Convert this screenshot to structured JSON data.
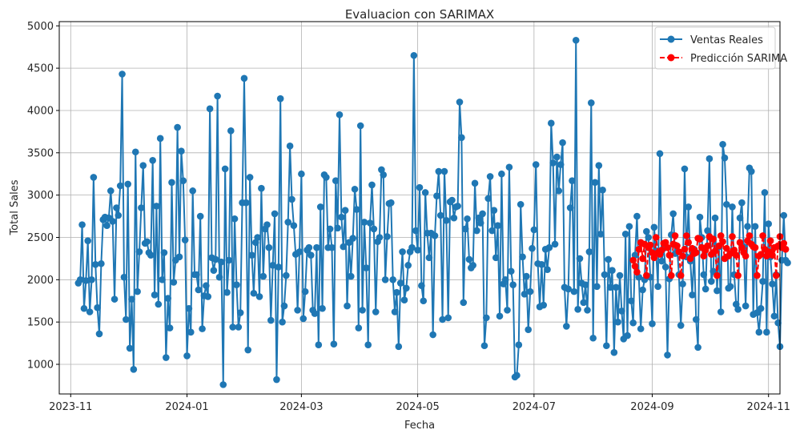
{
  "chart_data": {
    "type": "line",
    "title": "Evaluacion con SARIMAX",
    "xlabel": "Fecha",
    "ylabel": "Total Sales",
    "xlim": [
      "2023-10-26",
      "2024-11-07"
    ],
    "ylim": [
      650,
      5050
    ],
    "x_ticks": [
      "2023-11",
      "2024-01",
      "2024-03",
      "2024-05",
      "2024-07",
      "2024-09",
      "2024-11"
    ],
    "x_tick_dates": [
      "2023-11-01",
      "2024-01-01",
      "2024-03-01",
      "2024-05-01",
      "2024-07-01",
      "2024-09-01",
      "2024-11-01"
    ],
    "y_ticks": [
      1000,
      1500,
      2000,
      2500,
      3000,
      3500,
      4000,
      4500,
      5000
    ],
    "grid": true,
    "legend": {
      "placement": "top-right"
    },
    "series": [
      {
        "name": "Ventas Reales",
        "color": "#1f77b4",
        "line_style": "solid",
        "marker": "circle",
        "start_date": "2023-11-05",
        "values": [
          1960,
          2000,
          2650,
          1660,
          1990,
          2460,
          1620,
          2000,
          3210,
          2180,
          1670,
          1360,
          2190,
          2710,
          2740,
          2640,
          2730,
          3050,
          2690,
          1770,
          2850,
          2760,
          3110,
          4430,
          2030,
          1530,
          3130,
          1190,
          1770,
          940,
          3510,
          1860,
          2330,
          2850,
          3350,
          2430,
          2450,
          2320,
          2290,
          3410,
          1820,
          2870,
          1710,
          3670,
          2000,
          2320,
          1080,
          1780,
          1430,
          3150,
          1970,
          2230,
          3800,
          2270,
          3520,
          3170,
          2470,
          1100,
          1660,
          1380,
          3050,
          2060,
          2060,
          1880,
          2750,
          1420,
          1810,
          1930,
          1800,
          4020,
          2260,
          2110,
          2240,
          4170,
          2030,
          2210,
          760,
          3310,
          1850,
          2230,
          3760,
          1440,
          2720,
          1940,
          1440,
          1610,
          2910,
          4380,
          2910,
          1170,
          3210,
          2290,
          1840,
          2440,
          2500,
          1800,
          3080,
          2040,
          2600,
          2650,
          2380,
          1520,
          2170,
          2780,
          820,
          2150,
          4140,
          1500,
          1690,
          2050,
          2680,
          3580,
          2950,
          2640,
          2300,
          1640,
          2330,
          3250,
          1540,
          1860,
          2350,
          2380,
          2290,
          1640,
          1600,
          2380,
          1230,
          2860,
          1660,
          3240,
          3210,
          2380,
          2600,
          2380,
          1240,
          3170,
          2610,
          3950,
          2740,
          2390,
          2820,
          1690,
          2440,
          2040,
          2490,
          3070,
          2830,
          1430,
          3820,
          1640,
          2680,
          2140,
          1230,
          2670,
          3120,
          2600,
          1620,
          2450,
          2500,
          3300,
          3240,
          2000,
          2510,
          2900,
          2910,
          2000,
          1620,
          1850,
          1210,
          1960,
          2330,
          1760,
          1900,
          2170,
          2330,
          2380,
          4650,
          2580,
          2350,
          3090,
          1930,
          1750,
          3030,
          2550,
          2260,
          2550,
          1350,
          2520,
          2990,
          3280,
          2760,
          1530,
          3280,
          2700,
          1550,
          2920,
          2940,
          2730,
          2860,
          2870,
          4100,
          3680,
          1730,
          2600,
          2720,
          2240,
          2140,
          2170,
          3140,
          2580,
          2730,
          2670,
          2780,
          1220,
          1550,
          2960,
          3220,
          2580,
          2820,
          2260,
          2640,
          1570,
          3250,
          1950,
          2000,
          1640,
          3330,
          2100,
          1940,
          850,
          870,
          1230,
          2890,
          2270,
          1830,
          2040,
          1410,
          1860,
          2370,
          2590,
          3360,
          2190,
          1680,
          2180,
          1700,
          2360,
          2120,
          2380,
          3850,
          3380,
          2420,
          3450,
          3050,
          3360,
          3620,
          1910,
          1450,
          1890,
          2850,
          3170,
          1860,
          4830,
          1650,
          2250,
          1960,
          1730,
          1940,
          1640,
          2330,
          4090,
          1310,
          3150,
          1920,
          3350,
          2540,
          3060,
          2060,
          1220,
          2240,
          1910,
          2110,
          1140,
          1910,
          1500,
          2050,
          1630,
          1300,
          2540,
          1340,
          2630,
          1750,
          1490,
          2290,
          2750,
          2030,
          1420,
          1880,
          2000,
          2570,
          2500,
          2030,
          1480,
          2620,
          2340,
          1920,
          3490,
          2220,
          2370,
          2150,
          1110,
          2010,
          2530,
          2780,
          2310,
          2400,
          2060,
          1460,
          1950,
          3310,
          2270,
          2860,
          2220,
          1820,
          2360,
          1530,
          1200,
          2740,
          2500,
          2060,
          1890,
          2580,
          3430,
          1980,
          2100,
          2730,
          1870,
          2390,
          1620,
          3600,
          3440,
          2890,
          1900,
          1920,
          2860,
          2060,
          1710,
          1650,
          2730,
          2910,
          2390,
          1690,
          2630,
          3320,
          3280,
          1590,
          2630,
          1610,
          1380,
          1660,
          1980,
          3030,
          1380,
          2660,
          2270,
          1950,
          1570,
          2060,
          1490,
          1210,
          2230,
          2760,
          2230,
          2200
        ]
      },
      {
        "name": "Predicción SARIMA",
        "color": "#ff0000",
        "line_style": "dashed",
        "marker": "circle",
        "start_date": "2024-08-22",
        "values": [
          2230,
          2160,
          2090,
          2360,
          2440,
          2250,
          2420,
          2050,
          2380,
          2410,
          2320,
          2260,
          2500,
          2320,
          2300,
          2350,
          2430,
          2440,
          2380,
          2290,
          2050,
          2420,
          2520,
          2400,
          2330,
          2050,
          2280,
          2360,
          2520,
          2440,
          2250,
          2370,
          2310,
          2320,
          2490,
          2480,
          2380,
          2280,
          2350,
          2400,
          2510,
          2300,
          2480,
          2340,
          2050,
          2400,
          2520,
          2450,
          2250,
          2370,
          2280,
          2310,
          2510,
          2350,
          2290,
          2050,
          2440,
          2380,
          2320,
          2280,
          2460,
          2520,
          2420,
          2390,
          2380,
          2050,
          2280,
          2300,
          2520,
          2360,
          2280,
          2330,
          2460,
          2290,
          2380,
          2050,
          2400,
          2510,
          2380,
          2430,
          2360
        ]
      }
    ]
  }
}
